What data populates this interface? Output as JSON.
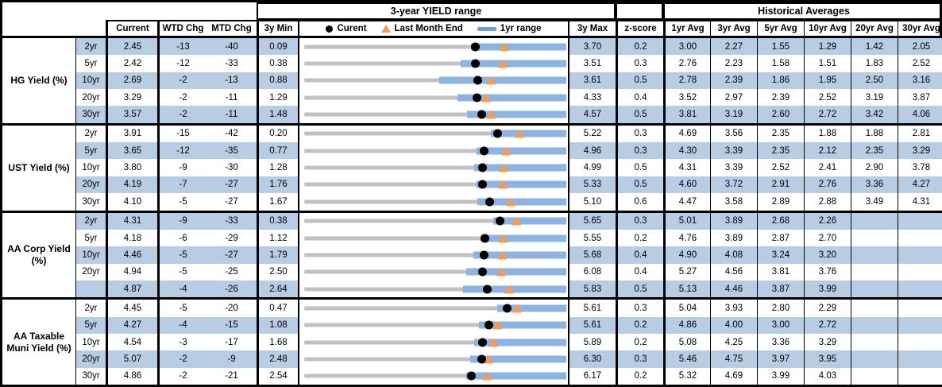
{
  "header": {
    "chart_title": "3-year YIELD range",
    "historical_title": "Historical Averages",
    "col_current": "Current",
    "col_wtd": "WTD Chg",
    "col_mtd": "MTD Chg",
    "col_3y_min": "3y Min",
    "col_3y_max": "3y Max",
    "col_zscore": "z-score",
    "avg_cols": [
      "1yr Avg",
      "3yr Avg",
      "5yr Avg",
      "10yr Avg",
      "20yr Avg",
      "30yr Avg"
    ],
    "legend": {
      "current": "Curent",
      "last_month_end": "Last Month End",
      "range_1yr": "1yr range"
    }
  },
  "colors": {
    "row_band": "#b8cce4",
    "range_bar": "#8fb3e0",
    "track": "#c1c1c1",
    "triangle": "#f79b53",
    "dot": "#000000"
  },
  "chart_data": {
    "type": "table",
    "title": "3-year YIELD range",
    "legend": [
      "Curent",
      "Last Month End",
      "1yr range"
    ],
    "notes": "Each row is a bullet chart: gray track spans 3y Min..3y Max, blue bar is the 1yr range (all reach 3y Max; left edge = yr1_low estimated from pixels), black dot = Current, orange triangle = last month end (Current - MTD/100). WTD/MTD in bps.",
    "groups": [
      {
        "label": "HG Yield (%)",
        "rows": [
          {
            "tenor": "2yr",
            "current": "2.45",
            "wtd": "-13",
            "mtd": "-40",
            "min": "0.09",
            "max": "3.70",
            "z": "0.2",
            "avgs": [
              "3.00",
              "2.27",
              "1.55",
              "1.29",
              "1.42",
              "2.05"
            ],
            "yr1_low": 2.39
          },
          {
            "tenor": "5yr",
            "current": "2.42",
            "wtd": "-12",
            "mtd": "-33",
            "min": "0.38",
            "max": "3.51",
            "z": "0.3",
            "avgs": [
              "2.76",
              "2.23",
              "1.58",
              "1.51",
              "1.83",
              "2.52"
            ],
            "yr1_low": 2.25
          },
          {
            "tenor": "10yr",
            "current": "2.69",
            "wtd": "-2",
            "mtd": "-13",
            "min": "0.88",
            "max": "3.61",
            "z": "0.5",
            "avgs": [
              "2.78",
              "2.39",
              "1.86",
              "1.95",
              "2.50",
              "3.16"
            ],
            "yr1_low": 2.29
          },
          {
            "tenor": "20yr",
            "current": "3.29",
            "wtd": "-2",
            "mtd": "-11",
            "min": "1.29",
            "max": "4.33",
            "z": "0.4",
            "avgs": [
              "3.52",
              "2.97",
              "2.39",
              "2.52",
              "3.19",
              "3.87"
            ],
            "yr1_low": 3.07
          },
          {
            "tenor": "30yr",
            "current": "3.57",
            "wtd": "-2",
            "mtd": "-11",
            "min": "1.48",
            "max": "4.57",
            "z": "0.5",
            "avgs": [
              "3.81",
              "3.19",
              "2.60",
              "2.72",
              "3.42",
              "4.06"
            ],
            "yr1_low": 3.4
          }
        ]
      },
      {
        "label": "UST Yield (%)",
        "rows": [
          {
            "tenor": "2yr",
            "current": "3.91",
            "wtd": "-15",
            "mtd": "-42",
            "min": "0.20",
            "max": "5.22",
            "z": "0.3",
            "avgs": [
              "4.69",
              "3.56",
              "2.35",
              "1.88",
              "1.88",
              "2.81"
            ],
            "yr1_low": 3.77
          },
          {
            "tenor": "5yr",
            "current": "3.65",
            "wtd": "-12",
            "mtd": "-35",
            "min": "0.77",
            "max": "4.96",
            "z": "0.3",
            "avgs": [
              "4.30",
              "3.39",
              "2.35",
              "2.12",
              "2.35",
              "3.29"
            ],
            "yr1_low": 3.53
          },
          {
            "tenor": "10yr",
            "current": "3.80",
            "wtd": "-9",
            "mtd": "-30",
            "min": "1.28",
            "max": "4.99",
            "z": "0.5",
            "avgs": [
              "4.31",
              "3.39",
              "2.52",
              "2.41",
              "2.90",
              "3.78"
            ],
            "yr1_low": 3.69
          },
          {
            "tenor": "20yr",
            "current": "4.19",
            "wtd": "-7",
            "mtd": "-27",
            "min": "1.76",
            "max": "5.33",
            "z": "0.5",
            "avgs": [
              "4.60",
              "3.72",
              "2.91",
              "2.76",
              "3.36",
              "4.27"
            ],
            "yr1_low": 4.11
          },
          {
            "tenor": "30yr",
            "current": "4.10",
            "wtd": "-5",
            "mtd": "-27",
            "min": "1.67",
            "max": "5.10",
            "z": "0.6",
            "avgs": [
              "4.47",
              "3.58",
              "2.89",
              "2.88",
              "3.49",
              "4.31"
            ],
            "yr1_low": 3.94
          }
        ]
      },
      {
        "label": "AA Corp Yield (%)",
        "rows": [
          {
            "tenor": "2yr",
            "current": "4.31",
            "wtd": "-9",
            "mtd": "-33",
            "min": "0.38",
            "max": "5.65",
            "z": "0.3",
            "avgs": [
              "5.01",
              "3.89",
              "2.68",
              "2.26",
              "",
              ""
            ],
            "yr1_low": 4.18
          },
          {
            "tenor": "5yr",
            "current": "4.18",
            "wtd": "-6",
            "mtd": "-29",
            "min": "1.12",
            "max": "5.55",
            "z": "0.2",
            "avgs": [
              "4.76",
              "3.89",
              "2.87",
              "2.70",
              "",
              ""
            ],
            "yr1_low": 4.1
          },
          {
            "tenor": "10yr",
            "current": "4.46",
            "wtd": "-5",
            "mtd": "-27",
            "min": "1.79",
            "max": "5.68",
            "z": "0.4",
            "avgs": [
              "4.90",
              "4.08",
              "3.24",
              "3.20",
              "",
              ""
            ],
            "yr1_low": 4.3
          },
          {
            "tenor": "20yr",
            "current": "4.94",
            "wtd": "-5",
            "mtd": "-25",
            "min": "2.50",
            "max": "6.08",
            "z": "0.4",
            "avgs": [
              "5.27",
              "4.56",
              "3.81",
              "3.76",
              "",
              ""
            ],
            "yr1_low": 4.71
          },
          {
            "tenor": "",
            "current": "4.87",
            "wtd": "-4",
            "mtd": "-26",
            "min": "2.64",
            "max": "5.83",
            "z": "0.5",
            "avgs": [
              "5.13",
              "4.46",
              "3.87",
              "3.99",
              "",
              ""
            ],
            "yr1_low": 4.57
          }
        ]
      },
      {
        "label": "AA Taxable Muni Yield (%)",
        "rows": [
          {
            "tenor": "2yr",
            "current": "4.45",
            "wtd": "-5",
            "mtd": "-20",
            "min": "0.47",
            "max": "5.61",
            "z": "0.3",
            "avgs": [
              "5.04",
              "3.93",
              "2.80",
              "2.29",
              "",
              ""
            ],
            "yr1_low": 4.25
          },
          {
            "tenor": "5yr",
            "current": "4.27",
            "wtd": "-4",
            "mtd": "-15",
            "min": "1.08",
            "max": "5.61",
            "z": "0.2",
            "avgs": [
              "4.86",
              "4.00",
              "3.00",
              "2.72",
              "",
              ""
            ],
            "yr1_low": 4.1
          },
          {
            "tenor": "10yr",
            "current": "4.54",
            "wtd": "-3",
            "mtd": "-17",
            "min": "1.68",
            "max": "5.89",
            "z": "0.2",
            "avgs": [
              "5.08",
              "4.25",
              "3.36",
              "3.29",
              "",
              ""
            ],
            "yr1_low": 4.41
          },
          {
            "tenor": "20yr",
            "current": "5.07",
            "wtd": "-2",
            "mtd": "-9",
            "min": "2.48",
            "max": "6.30",
            "z": "0.3",
            "avgs": [
              "5.46",
              "4.75",
              "3.97",
              "3.95",
              "",
              ""
            ],
            "yr1_low": 4.9
          },
          {
            "tenor": "30yr",
            "current": "4.86",
            "wtd": "-2",
            "mtd": "-21",
            "min": "2.54",
            "max": "6.17",
            "z": "0.2",
            "avgs": [
              "5.32",
              "4.69",
              "3.99",
              "4.03",
              "",
              ""
            ],
            "yr1_low": 4.78
          }
        ]
      }
    ]
  }
}
